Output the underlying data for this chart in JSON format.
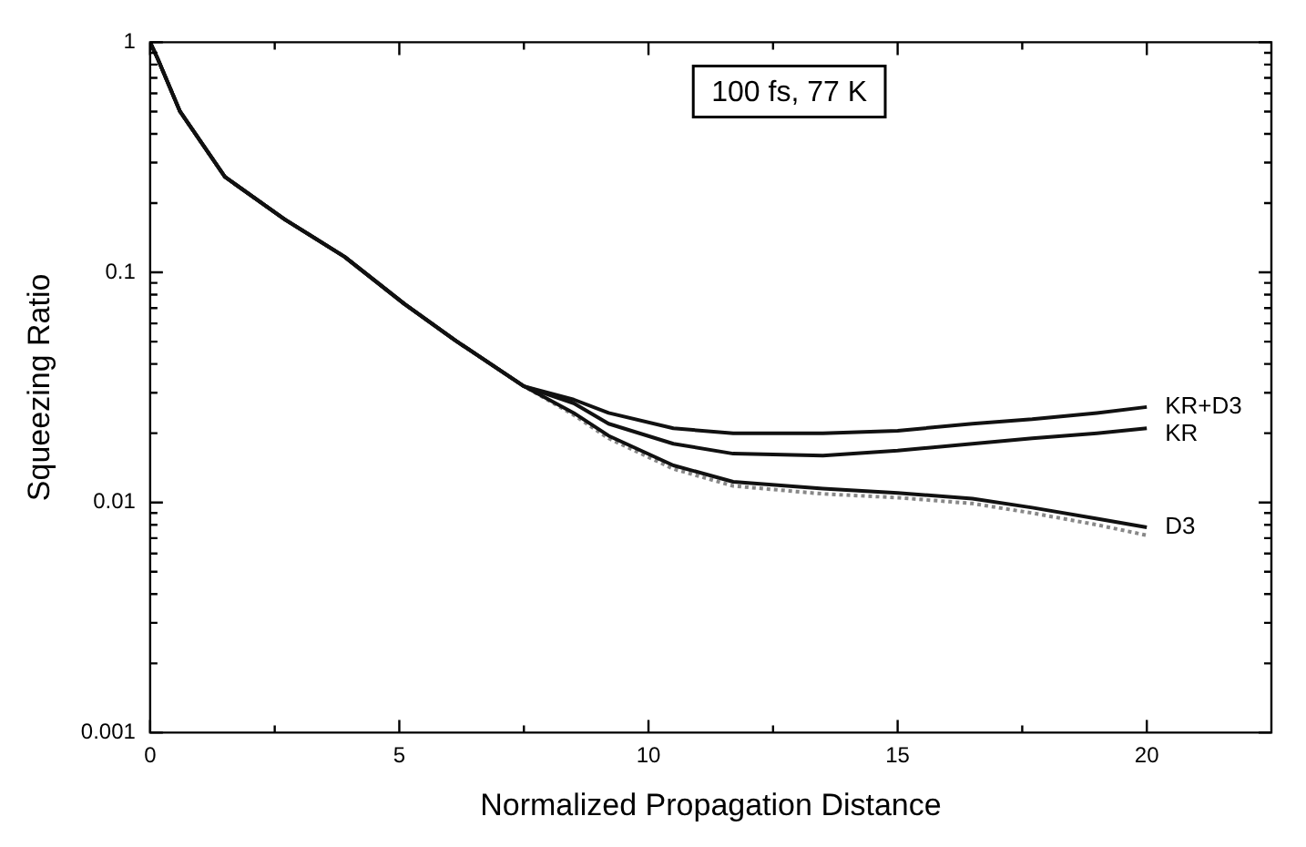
{
  "chart_data": {
    "type": "line",
    "xlabel": "Normalized Propagation Distance",
    "ylabel": "Squeezing Ratio",
    "annotations": [
      "100 fs, 77 K"
    ],
    "log": "y",
    "xlim": [
      0,
      22.5
    ],
    "ylim": [
      0.001,
      1
    ],
    "xticks": [
      0,
      {
        "value": 2.5,
        "label": null
      },
      5,
      {
        "value": 7.5,
        "label": null
      },
      10,
      {
        "value": 12.5,
        "label": null
      },
      15,
      {
        "value": 17.5,
        "label": null
      },
      20
    ],
    "yticks": [
      0.001,
      {
        "value": 0.002,
        "label": null
      },
      {
        "value": 0.003,
        "label": null
      },
      {
        "value": 0.004,
        "label": null
      },
      {
        "value": 0.005,
        "label": null
      },
      {
        "value": 0.006,
        "label": null
      },
      {
        "value": 0.007,
        "label": null
      },
      {
        "value": 0.008,
        "label": null
      },
      {
        "value": 0.009,
        "label": null
      },
      0.01,
      {
        "value": 0.02,
        "label": null
      },
      {
        "value": 0.03,
        "label": null
      },
      {
        "value": 0.04,
        "label": null
      },
      {
        "value": 0.05,
        "label": null
      },
      {
        "value": 0.06,
        "label": null
      },
      {
        "value": 0.07,
        "label": null
      },
      {
        "value": 0.08,
        "label": null
      },
      {
        "value": 0.09,
        "label": null
      },
      0.1,
      {
        "value": 0.2,
        "label": null
      },
      {
        "value": 0.3,
        "label": null
      },
      {
        "value": 0.4,
        "label": null
      },
      {
        "value": 0.5,
        "label": null
      },
      {
        "value": 0.6,
        "label": null
      },
      {
        "value": 0.7,
        "label": null
      },
      {
        "value": 0.8,
        "label": null
      },
      {
        "value": 0.9,
        "label": null
      },
      1
    ],
    "x": [
      0,
      0.15,
      0.6,
      1.5,
      2.7,
      3.9,
      5.1,
      6.1,
      7.5,
      8.5,
      9.2,
      10.5,
      11.7,
      13.5,
      15,
      16.5,
      17.7,
      19,
      20
    ],
    "marker": "none",
    "series": [
      {
        "name": "KR+D3",
        "color": "#111111",
        "values": [
          1,
          0.85,
          0.5,
          0.26,
          0.17,
          0.117,
          0.073,
          0.051,
          0.032,
          0.028,
          0.0245,
          0.021,
          0.02,
          0.02,
          0.0205,
          0.022,
          0.023,
          0.0245,
          0.026
        ]
      },
      {
        "name": "KR",
        "color": "#111111",
        "values": [
          1,
          0.85,
          0.5,
          0.26,
          0.17,
          0.117,
          0.073,
          0.051,
          0.032,
          0.027,
          0.022,
          0.018,
          0.0163,
          0.016,
          0.0168,
          0.018,
          0.019,
          0.02,
          0.021
        ]
      },
      {
        "name": "D3",
        "color": "#111111",
        "values": [
          1,
          0.85,
          0.5,
          0.26,
          0.17,
          0.117,
          0.073,
          0.051,
          0.032,
          0.0245,
          0.0195,
          0.0145,
          0.0123,
          0.0115,
          0.011,
          0.0104,
          0.0095,
          0.0085,
          0.0078
        ]
      },
      {
        "color": "#888888",
        "line_style": "dotted",
        "values": [
          1,
          0.85,
          0.5,
          0.26,
          0.17,
          0.117,
          0.073,
          0.051,
          0.032,
          0.024,
          0.019,
          0.014,
          0.0118,
          0.0109,
          0.0105,
          0.0099,
          0.009,
          0.008,
          0.0072
        ]
      }
    ]
  }
}
